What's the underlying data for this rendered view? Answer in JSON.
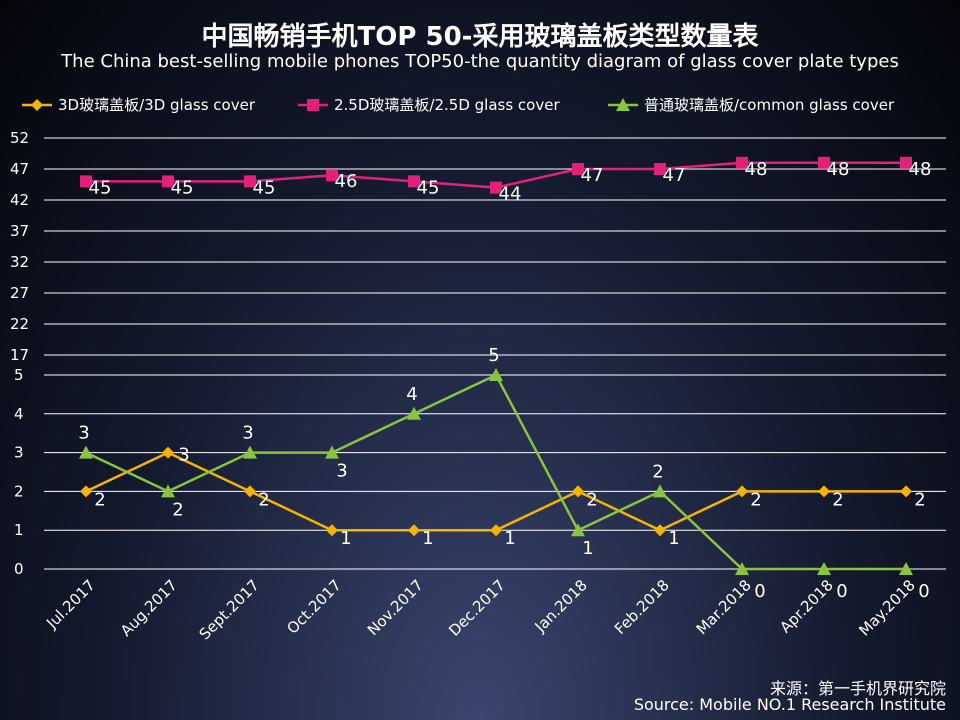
{
  "header": {
    "title": "中国畅销手机TOP 50-采用玻璃盖板类型数量表",
    "subtitle": "The China best-selling mobile phones TOP50-the quantity diagram of glass cover plate types"
  },
  "source": {
    "cn": "来源：第一手机界研究院",
    "en": "Source: Mobile NO.1 Research Institute"
  },
  "colors": {
    "series_3d": "#f5b400",
    "series_25d": "#e2217a",
    "series_common": "#8ac43f",
    "grid": "#ffffff"
  },
  "chart_data": {
    "type": "line",
    "title": "中国畅销手机TOP 50-采用玻璃盖板类型数量表",
    "legend_position": "top",
    "categories": [
      "Jul.2017",
      "Aug.2017",
      "Sept.2017",
      "Oct.2017",
      "Nov.2017",
      "Dec.2017",
      "Jan.2018",
      "Feb.2018",
      "Mar.2018",
      "Apr.2018",
      "May.2018"
    ],
    "upper_axis": {
      "ticks": [
        "52",
        "47",
        "42",
        "37",
        "32",
        "27",
        "22",
        "17"
      ],
      "ylim": [
        17,
        52
      ]
    },
    "lower_axis": {
      "ticks": [
        "5",
        "4",
        "3",
        "2",
        "1",
        "0"
      ],
      "ylim": [
        0,
        5
      ]
    },
    "series": [
      {
        "name": "3D玻璃盖板/3D glass cover",
        "marker": "diamond",
        "panel": "lower",
        "color_key": "series_3d",
        "values": [
          2,
          3,
          2,
          1,
          1,
          1,
          2,
          1,
          2,
          2,
          2
        ]
      },
      {
        "name": "2.5D玻璃盖板/2.5D glass cover",
        "marker": "square",
        "panel": "upper",
        "color_key": "series_25d",
        "values": [
          45,
          45,
          45,
          46,
          45,
          44,
          47,
          47,
          48,
          48,
          48
        ]
      },
      {
        "name": "普通玻璃盖板/common glass cover",
        "marker": "triangle",
        "panel": "lower",
        "color_key": "series_common",
        "values": [
          3,
          2,
          3,
          3,
          4,
          5,
          1,
          2,
          0,
          0,
          0
        ]
      }
    ]
  }
}
